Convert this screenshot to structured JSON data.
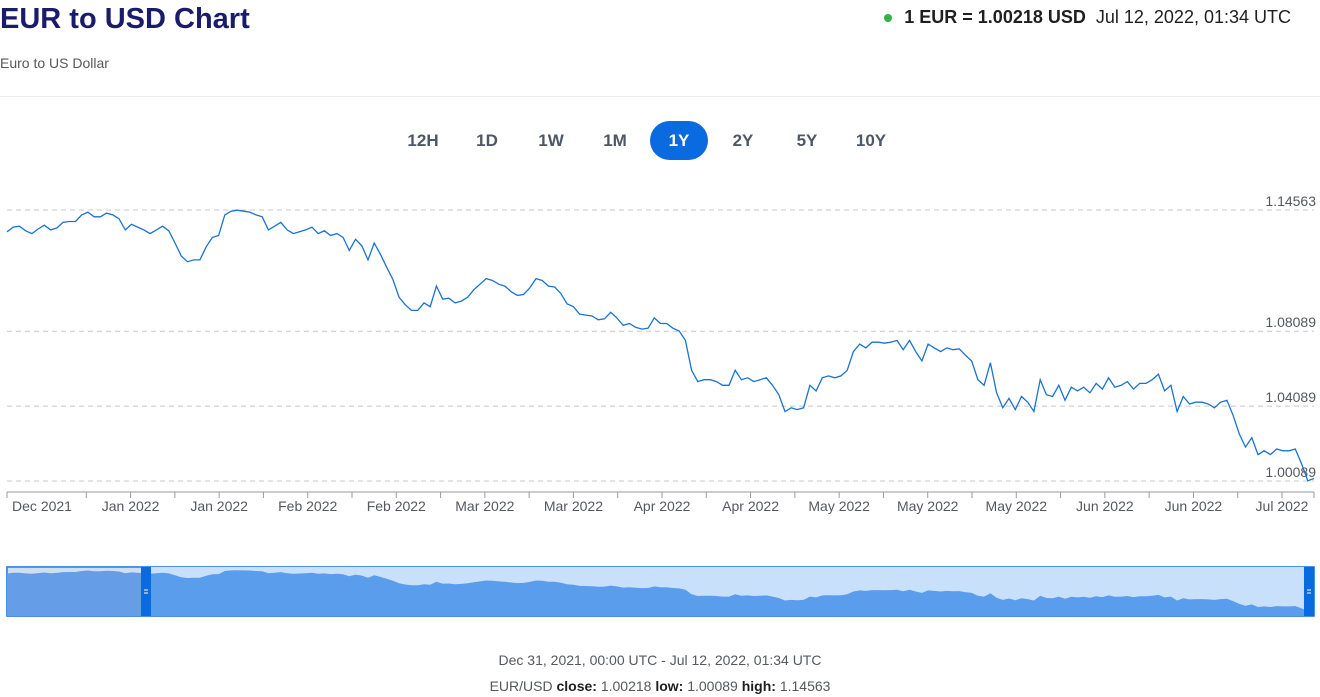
{
  "header": {
    "title": "EUR to USD Chart",
    "subtitle": "Euro to US Dollar",
    "rate": "1 EUR = 1.00218 USD",
    "timestamp": "Jul 12, 2022, 01:34 UTC",
    "status_color": "#2fb344"
  },
  "ranges": [
    {
      "label": "12H",
      "active": false
    },
    {
      "label": "1D",
      "active": false
    },
    {
      "label": "1W",
      "active": false
    },
    {
      "label": "1M",
      "active": false
    },
    {
      "label": "1Y",
      "active": true
    },
    {
      "label": "2Y",
      "active": false
    },
    {
      "label": "5Y",
      "active": false
    },
    {
      "label": "10Y",
      "active": false
    }
  ],
  "footer": {
    "range_text": "Dec 31, 2021, 00:00 UTC - Jul 12, 2022, 01:34 UTC",
    "pair": "EUR/USD",
    "close_label": "close:",
    "close_value": "1.00218",
    "low_label": "low:",
    "low_value": "1.00089",
    "high_label": "high:",
    "high_value": "1.14563"
  },
  "colors": {
    "accent": "#0a6ae0",
    "line": "#1a73d1",
    "navigator_fill": "#5b9ded",
    "navigator_window": "#c9e0fa"
  },
  "chart_data": {
    "type": "line",
    "title": "",
    "xlabel": "",
    "ylabel": "",
    "ylim": [
      1.0,
      1.155
    ],
    "y_ticks": [
      1.14563,
      1.08089,
      1.04089,
      1.00089
    ],
    "x_tick_labels": [
      "Dec 2021",
      "Jan 2022",
      "Jan 2022",
      "Feb 2022",
      "Feb 2022",
      "Mar 2022",
      "Mar 2022",
      "Apr 2022",
      "Apr 2022",
      "May 2022",
      "May 2022",
      "May 2022",
      "Jun 2022",
      "Jun 2022",
      "Jul 2022"
    ],
    "grid": "horizontal-dashed",
    "series": [
      {
        "values": [
          1.134,
          1.1365,
          1.137,
          1.1345,
          1.133,
          1.1355,
          1.1375,
          1.135,
          1.136,
          1.139,
          1.1395,
          1.1395,
          1.143,
          1.1445,
          1.142,
          1.142,
          1.144,
          1.143,
          1.141,
          1.135,
          1.138,
          1.1365,
          1.135,
          1.133,
          1.135,
          1.137,
          1.1345,
          1.128,
          1.121,
          1.118,
          1.119,
          1.119,
          1.126,
          1.131,
          1.132,
          1.143,
          1.145,
          1.1455,
          1.145,
          1.1445,
          1.143,
          1.142,
          1.135,
          1.137,
          1.139,
          1.135,
          1.133,
          1.134,
          1.135,
          1.1365,
          1.133,
          1.1345,
          1.132,
          1.133,
          1.131,
          1.124,
          1.13,
          1.1265,
          1.119,
          1.128,
          1.122,
          1.115,
          1.1085,
          1.099,
          1.095,
          1.092,
          1.092,
          1.096,
          1.094,
          1.105,
          1.098,
          1.0985,
          1.096,
          1.097,
          1.099,
          1.103,
          1.106,
          1.109,
          1.108,
          1.106,
          1.105,
          1.102,
          1.1,
          1.1005,
          1.104,
          1.109,
          1.108,
          1.105,
          1.1045,
          1.101,
          1.0955,
          1.094,
          1.09,
          1.0895,
          1.089,
          1.087,
          1.0875,
          1.091,
          1.088,
          1.084,
          1.085,
          1.083,
          1.082,
          1.0825,
          1.088,
          1.085,
          1.085,
          1.0825,
          1.081,
          1.076,
          1.06,
          1.054,
          1.055,
          1.055,
          1.054,
          1.052,
          1.052,
          1.06,
          1.055,
          1.056,
          1.054,
          1.055,
          1.056,
          1.052,
          1.047,
          1.038,
          1.04,
          1.039,
          1.04,
          1.052,
          1.049,
          1.056,
          1.057,
          1.056,
          1.057,
          1.06,
          1.07,
          1.074,
          1.072,
          1.075,
          1.075,
          1.0745,
          1.075,
          1.076,
          1.071,
          1.076,
          1.07,
          1.065,
          1.074,
          1.072,
          1.07,
          1.072,
          1.071,
          1.0715,
          1.068,
          1.065,
          1.055,
          1.052,
          1.064,
          1.048,
          1.04,
          1.045,
          1.039,
          1.046,
          1.043,
          1.038,
          1.055,
          1.047,
          1.046,
          1.052,
          1.044,
          1.051,
          1.049,
          1.051,
          1.048,
          1.053,
          1.05,
          1.056,
          1.051,
          1.052,
          1.054,
          1.05,
          1.053,
          1.053,
          1.055,
          1.058,
          1.049,
          1.052,
          1.038,
          1.046,
          1.042,
          1.043,
          1.043,
          1.042,
          1.04,
          1.043,
          1.044,
          1.036,
          1.026,
          1.019,
          1.024,
          1.015,
          1.017,
          1.015,
          1.018,
          1.017,
          1.017,
          1.018,
          1.01,
          1.001,
          1.0022
        ]
      }
    ]
  }
}
